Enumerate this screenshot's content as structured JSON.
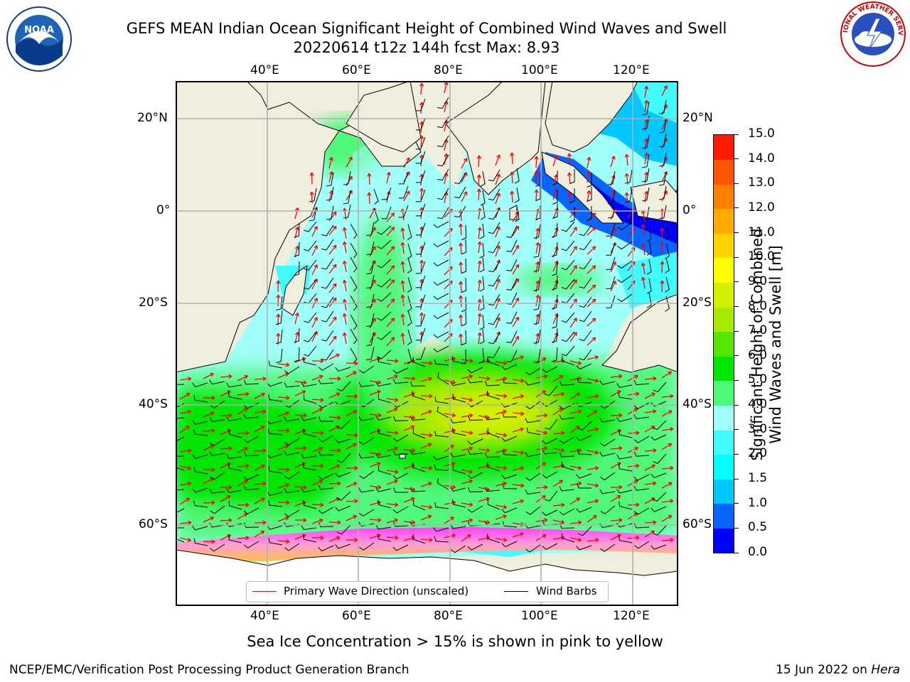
{
  "title": {
    "line1": "GEFS MEAN Indian Ocean Significant Height of Combined Wind Waves and Swell",
    "line2": "20220614 t12z 144h fcst   Max: 8.93"
  },
  "logos": {
    "left_text": "NOAA",
    "right_text": "NATIONAL WEATHER SERVICE"
  },
  "axes": {
    "lon_labels": [
      "40°E",
      "60°E",
      "80°E",
      "100°E",
      "120°E"
    ],
    "lat_labels": [
      "20°N",
      "0°",
      "20°S",
      "40°S",
      "60°S"
    ]
  },
  "legend": {
    "wave_dir": "Primary Wave Direction (unscaled)",
    "wind_barbs": "Wind Barbs"
  },
  "colorbar": {
    "title": "Significant Height of Combined\nWind Waves and Swell [m]",
    "ticks": [
      "0.0",
      "0.5",
      "1.0",
      "1.5",
      "2.0",
      "3.0",
      "4.0",
      "5.0",
      "6.0",
      "7.0",
      "8.0",
      "9.0",
      "10.0",
      "11.0",
      "12.0",
      "13.0",
      "14.0",
      "15.0"
    ],
    "colors": [
      "#0000ff",
      "#0a64ff",
      "#00c8ff",
      "#00ffff",
      "#40fcff",
      "#a0fff8",
      "#50f878",
      "#00e600",
      "#56e600",
      "#a8eb00",
      "#d2f000",
      "#ffff00",
      "#ffd200",
      "#ffaa00",
      "#ff8000",
      "#ff5500",
      "#ff1a00"
    ]
  },
  "caption": "Sea Ice Concentration > 15% is shown in pink to yellow",
  "footer": {
    "left": "NCEP/EMC/Verification Post Processing Product Generation Branch",
    "date": "15 Jun 2022 on ",
    "host": "Hera"
  },
  "colors": {
    "land": "#f0eedc",
    "grid": "#b0b0b0",
    "arrow": "#ff0000",
    "barb": "#000000"
  }
}
